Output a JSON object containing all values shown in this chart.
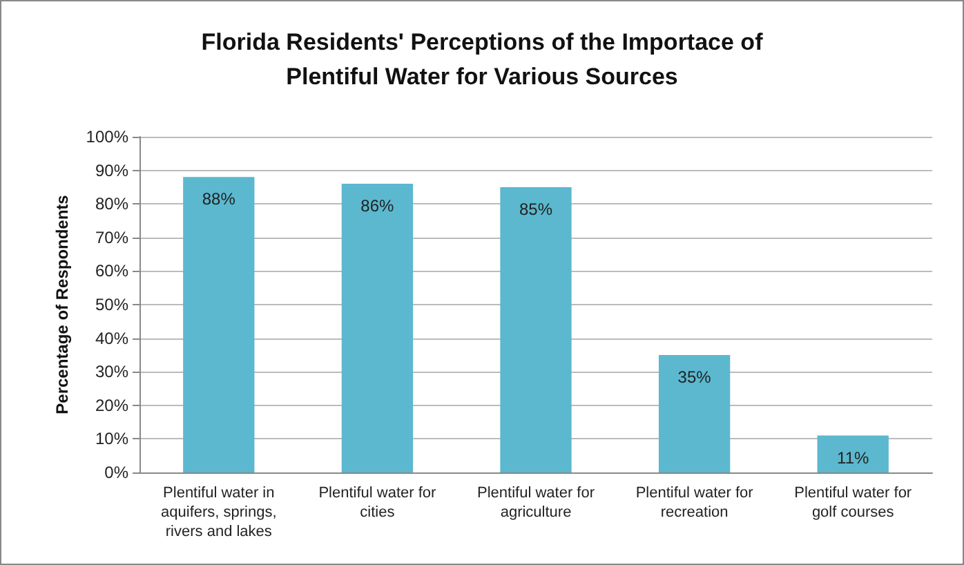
{
  "chart_data": {
    "type": "bar",
    "title": "Florida Residents' Perceptions of the Importace of\nPlentiful Water for Various Sources",
    "ylabel": "Percentage of Respondents",
    "categories": [
      "Plentiful water in\naquifers, springs,\nrivers and lakes",
      "Plentiful water for\ncities",
      "Plentiful water for\nagriculture",
      "Plentiful water for\nrecreation",
      "Plentiful water for\ngolf courses"
    ],
    "values": [
      88,
      86,
      85,
      35,
      11
    ],
    "value_labels": [
      "88%",
      "86%",
      "85%",
      "35%",
      "11%"
    ],
    "color": "#5bb8cf",
    "ylim": [
      0,
      100
    ],
    "yticks": [
      {
        "value": 0,
        "label": "0%"
      },
      {
        "value": 10,
        "label": "10%"
      },
      {
        "value": 20,
        "label": "20%"
      },
      {
        "value": 30,
        "label": "30%"
      },
      {
        "value": 40,
        "label": "40%"
      },
      {
        "value": 50,
        "label": "50%"
      },
      {
        "value": 60,
        "label": "60%"
      },
      {
        "value": 70,
        "label": "70%"
      },
      {
        "value": 80,
        "label": "80%"
      },
      {
        "value": 90,
        "label": "90%"
      },
      {
        "value": 100,
        "label": "100%"
      }
    ],
    "grid": "y"
  }
}
